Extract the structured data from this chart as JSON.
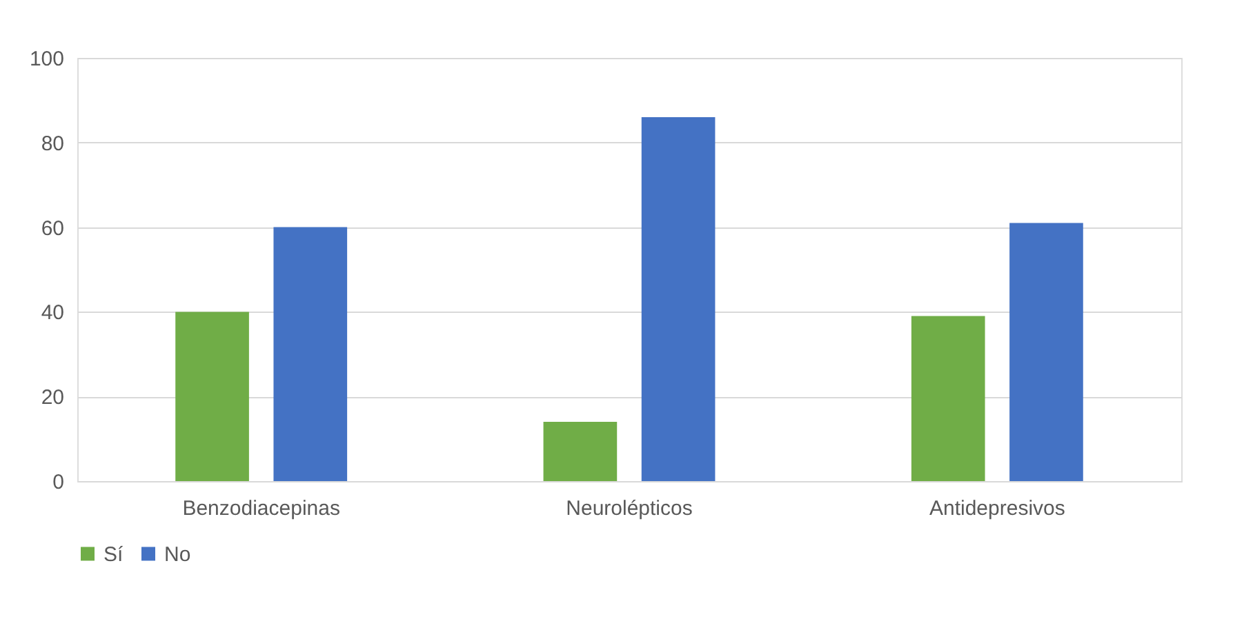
{
  "chart_data": {
    "type": "bar",
    "categories": [
      "Benzodiacepinas",
      "Neurolépticos",
      "Antidepresivos"
    ],
    "series": [
      {
        "name": "Sí",
        "color": "#70ad47",
        "values": [
          40,
          14,
          39
        ]
      },
      {
        "name": "No",
        "color": "#4472c4",
        "values": [
          60,
          86,
          61
        ]
      }
    ],
    "ylim": [
      0,
      100
    ],
    "yticks": [
      0,
      20,
      40,
      60,
      80,
      100
    ],
    "grid": "y",
    "legend": "bottom"
  }
}
